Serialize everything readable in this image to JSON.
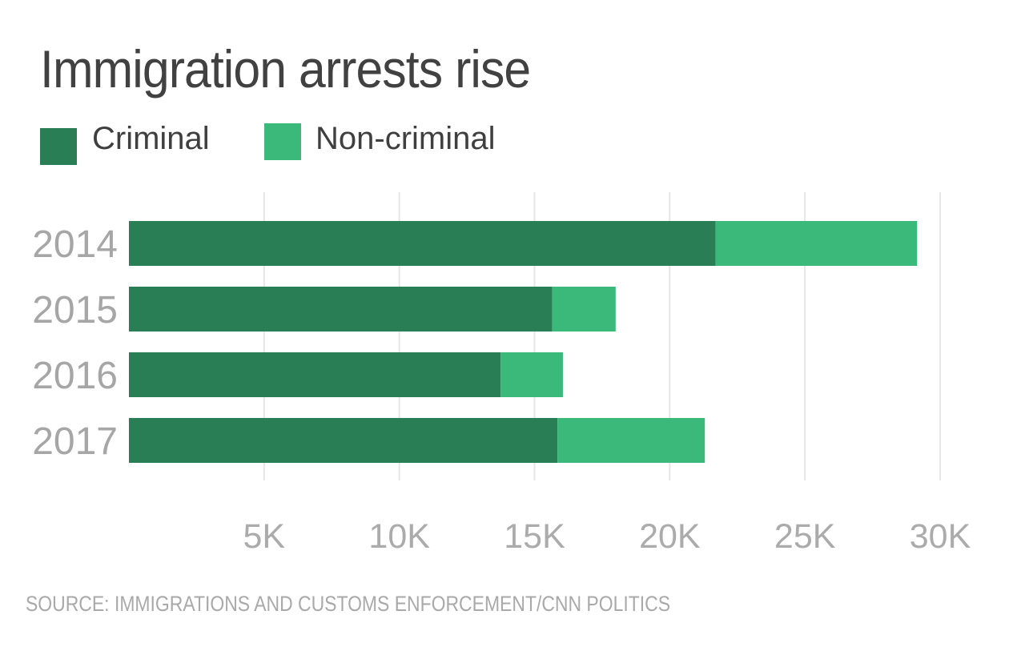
{
  "chart_data": {
    "type": "bar",
    "orientation": "horizontal",
    "stacked": true,
    "title": "Immigration arrests rise",
    "categories": [
      "2014",
      "2015",
      "2016",
      "2017"
    ],
    "series": [
      {
        "name": "Criminal",
        "color": "#2a7e56",
        "values": [
          21700,
          15650,
          13750,
          15850
        ]
      },
      {
        "name": "Non-criminal",
        "color": "#3bb97a",
        "values": [
          7450,
          2350,
          2300,
          5450
        ]
      }
    ],
    "xlim": [
      0,
      30000
    ],
    "xticks": [
      5000,
      10000,
      15000,
      20000,
      25000,
      30000
    ],
    "xtick_labels": [
      "5K",
      "10K",
      "15K",
      "20K",
      "25K",
      "30K"
    ],
    "grid": "vertical",
    "legend": "top-left",
    "source": "SOURCE: IMMIGRATIONS AND CUSTOMS ENFORCEMENT/CNN POLITICS"
  }
}
